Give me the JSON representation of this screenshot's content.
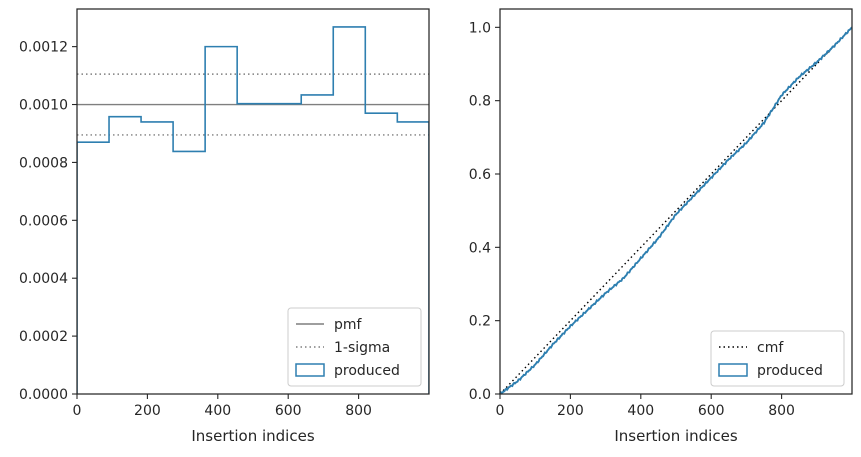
{
  "chart_data": [
    {
      "type": "step",
      "xlabel": "Insertion indices",
      "ylabel": "",
      "xlim": [
        0,
        1000
      ],
      "ylim": [
        0,
        0.00133
      ],
      "xticks": [
        "0",
        "200",
        "400",
        "600",
        "800"
      ],
      "yticks": [
        "0.0000",
        "0.0002",
        "0.0004",
        "0.0006",
        "0.0008",
        "0.0010",
        "0.0012"
      ],
      "pmf": 0.001,
      "sigma_lines": [
        0.000895,
        0.001105
      ],
      "bin_edges": [
        0,
        91,
        182,
        273,
        364,
        455,
        546,
        637,
        728,
        819,
        910,
        1000
      ],
      "produced": [
        0.00087,
        0.000958,
        0.00094,
        0.000838,
        0.0012,
        0.001003,
        0.001003,
        0.001033,
        0.001268,
        0.00097,
        0.00094
      ],
      "colors": {
        "produced": "#2e7fb0",
        "pmf": "#7f7f7f",
        "sigma": "#7f7f7f"
      },
      "legend": {
        "position": "lower-right",
        "entries": [
          "pmf",
          "1-sigma",
          "produced"
        ]
      },
      "grid": false
    },
    {
      "type": "line",
      "xlabel": "Insertion indices",
      "ylabel": "",
      "xlim": [
        0,
        1000
      ],
      "ylim": [
        0,
        1.05
      ],
      "xticks": [
        "0",
        "200",
        "400",
        "600",
        "800"
      ],
      "yticks": [
        "0.0",
        "0.2",
        "0.4",
        "0.6",
        "0.8",
        "1.0"
      ],
      "cmf": {
        "x": [
          0,
          1000
        ],
        "y": [
          0,
          1
        ]
      },
      "produced": {
        "x": [
          0,
          50,
          100,
          150,
          200,
          250,
          300,
          350,
          400,
          450,
          500,
          550,
          600,
          650,
          700,
          750,
          800,
          850,
          900,
          950,
          1000
        ],
        "y": [
          0,
          0.035,
          0.08,
          0.135,
          0.185,
          0.23,
          0.275,
          0.315,
          0.37,
          0.425,
          0.49,
          0.54,
          0.59,
          0.64,
          0.685,
          0.74,
          0.815,
          0.865,
          0.905,
          0.95,
          1.0
        ]
      },
      "colors": {
        "produced": "#2e7fb0",
        "cmf": "#000000"
      },
      "legend": {
        "position": "lower-right",
        "entries": [
          "cmf",
          "produced"
        ]
      },
      "grid": false
    }
  ]
}
